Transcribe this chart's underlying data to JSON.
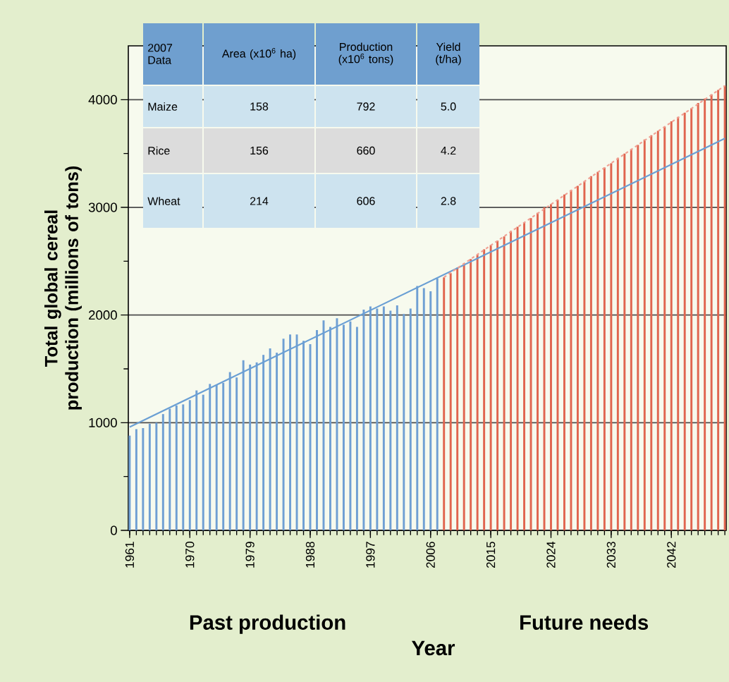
{
  "chart_data": {
    "type": "bar",
    "xlabel": "Year",
    "ylabel": "Total global cereal production (millions of tons)",
    "xlim": [
      1960.8,
      2050.2
    ],
    "ylim": [
      0,
      4500
    ],
    "xticks": [
      1961,
      1970,
      1979,
      1988,
      1997,
      2006,
      2015,
      2024,
      2033,
      2042
    ],
    "yticks": [
      0,
      1000,
      2000,
      3000,
      4000
    ],
    "grid": "y",
    "series": [
      {
        "color": "#6f9fd3",
        "x": [
          1961,
          1962,
          1963,
          1964,
          1965,
          1966,
          1967,
          1968,
          1969,
          1970,
          1971,
          1972,
          1973,
          1974,
          1975,
          1976,
          1977,
          1978,
          1979,
          1980,
          1981,
          1982,
          1983,
          1984,
          1985,
          1986,
          1987,
          1988,
          1989,
          1990,
          1991,
          1992,
          1993,
          1994,
          1995,
          1996,
          1997,
          1998,
          1999,
          2000,
          2001,
          2002,
          2003,
          2004,
          2005,
          2006,
          2007
        ],
        "values": [
          880,
          940,
          950,
          990,
          1000,
          1080,
          1130,
          1160,
          1170,
          1210,
          1300,
          1260,
          1360,
          1350,
          1370,
          1470,
          1420,
          1580,
          1540,
          1560,
          1630,
          1690,
          1650,
          1780,
          1820,
          1820,
          1760,
          1730,
          1860,
          1950,
          1890,
          1970,
          1910,
          1940,
          1890,
          2050,
          2080,
          2060,
          2080,
          2040,
          2090,
          2010,
          2060,
          2270,
          2250,
          2220,
          2340
        ]
      },
      {
        "color": "#e0654f",
        "x": [
          2008,
          2009,
          2010,
          2011,
          2012,
          2013,
          2014,
          2015,
          2016,
          2017,
          2018,
          2019,
          2020,
          2021,
          2022,
          2023,
          2024,
          2025,
          2026,
          2027,
          2028,
          2029,
          2030,
          2031,
          2032,
          2033,
          2034,
          2035,
          2036,
          2037,
          2038,
          2039,
          2040,
          2041,
          2042,
          2043,
          2044,
          2045,
          2046,
          2047,
          2048,
          2049,
          2050
        ],
        "values": [
          2350,
          2390,
          2440,
          2480,
          2520,
          2560,
          2610,
          2650,
          2690,
          2730,
          2780,
          2820,
          2860,
          2900,
          2950,
          3000,
          3030,
          3070,
          3120,
          3160,
          3200,
          3240,
          3290,
          3330,
          3370,
          3410,
          3460,
          3500,
          3540,
          3580,
          3630,
          3670,
          3710,
          3750,
          3800,
          3840,
          3880,
          3920,
          3970,
          4010,
          4050,
          4090,
          4130
        ]
      },
      {
        "type": "line",
        "color": "#6a9fd4",
        "x": [
          1961,
          2050
        ],
        "values": [
          960,
          3640
        ]
      },
      {
        "type": "line",
        "color": "#f0a093",
        "line_style": "dashed",
        "x": [
          2008,
          2050
        ],
        "values": [
          2350,
          4130
        ]
      }
    ],
    "annotations": [
      "Past production",
      "Future needs",
      "2007 Data",
      "Area (x10$^{6}$ ha)",
      "Production (x10$^{6}$ tons)",
      "Yield (t/ha)",
      "Maize",
      "158",
      "792",
      "5.0",
      "Rice",
      "156",
      "660",
      "4.2",
      "Wheat",
      "214",
      "606",
      "2.8"
    ]
  }
}
